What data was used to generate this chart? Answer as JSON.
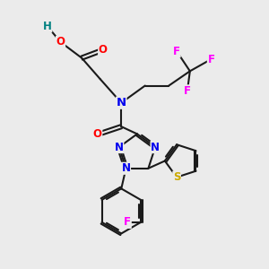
{
  "bg_color": "#ebebeb",
  "colors": {
    "bond": "#1a1a1a",
    "H": "#008080",
    "O": "#ff0000",
    "N": "#0000ee",
    "F": "#ff00ff",
    "S": "#ccaa00",
    "C": "#1a1a1a"
  },
  "lw": 1.5,
  "fs": 8.5
}
